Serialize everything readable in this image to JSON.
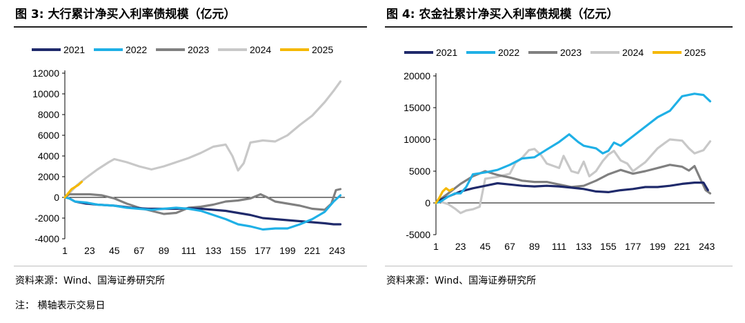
{
  "figures": [
    {
      "title": "图 3:  大行累计净买入利率债规模（亿元）",
      "source": "资料来源：Wind、国海证券研究所"
    },
    {
      "title": "图 4:  农金社累计净买入利率债规模（亿元）",
      "source": "资料来源：Wind、国海证券研究所"
    }
  ],
  "note": "注：  横轴表示交易日",
  "chart_data": [
    {
      "type": "line",
      "title": "图 3:  大行累计净买入利率债规模（亿元）",
      "xlabel": "",
      "ylabel": "",
      "x_ticks": [
        1,
        23,
        45,
        67,
        89,
        111,
        133,
        155,
        177,
        199,
        221,
        243
      ],
      "xlim": [
        1,
        250
      ],
      "ylim": [
        -4000,
        12000
      ],
      "y_ticks": [
        -4000,
        -2000,
        0,
        2000,
        4000,
        6000,
        8000,
        10000,
        12000
      ],
      "legend_position": "top",
      "series": [
        {
          "name": "2021",
          "color": "#1f2a6b",
          "points": [
            [
              1,
              0
            ],
            [
              5,
              -100
            ],
            [
              10,
              -400
            ],
            [
              20,
              -600
            ],
            [
              30,
              -700
            ],
            [
              45,
              -800
            ],
            [
              60,
              -1000
            ],
            [
              75,
              -1100
            ],
            [
              89,
              -1100
            ],
            [
              100,
              -1100
            ],
            [
              111,
              -1050
            ],
            [
              122,
              -1100
            ],
            [
              133,
              -1200
            ],
            [
              144,
              -1300
            ],
            [
              155,
              -1500
            ],
            [
              166,
              -1700
            ],
            [
              177,
              -2000
            ],
            [
              188,
              -2100
            ],
            [
              199,
              -2200
            ],
            [
              210,
              -2300
            ],
            [
              221,
              -2400
            ],
            [
              232,
              -2500
            ],
            [
              240,
              -2600
            ],
            [
              246,
              -2600
            ]
          ]
        },
        {
          "name": "2022",
          "color": "#1fb0e6",
          "points": [
            [
              1,
              0
            ],
            [
              5,
              -100
            ],
            [
              10,
              -400
            ],
            [
              20,
              -500
            ],
            [
              30,
              -700
            ],
            [
              45,
              -800
            ],
            [
              56,
              -1000
            ],
            [
              67,
              -1100
            ],
            [
              78,
              -1200
            ],
            [
              89,
              -1100
            ],
            [
              100,
              -1000
            ],
            [
              111,
              -1100
            ],
            [
              122,
              -1300
            ],
            [
              133,
              -1700
            ],
            [
              144,
              -2100
            ],
            [
              155,
              -2600
            ],
            [
              166,
              -2800
            ],
            [
              177,
              -3100
            ],
            [
              188,
              -3000
            ],
            [
              199,
              -3000
            ],
            [
              210,
              -2600
            ],
            [
              221,
              -2100
            ],
            [
              232,
              -1400
            ],
            [
              240,
              -400
            ],
            [
              246,
              200
            ]
          ]
        },
        {
          "name": "2023",
          "color": "#808080",
          "points": [
            [
              1,
              0
            ],
            [
              5,
              300
            ],
            [
              12,
              300
            ],
            [
              23,
              300
            ],
            [
              34,
              200
            ],
            [
              45,
              -100
            ],
            [
              56,
              -600
            ],
            [
              67,
              -1000
            ],
            [
              78,
              -1300
            ],
            [
              89,
              -1600
            ],
            [
              100,
              -1500
            ],
            [
              111,
              -1000
            ],
            [
              122,
              -900
            ],
            [
              133,
              -700
            ],
            [
              144,
              -400
            ],
            [
              155,
              -300
            ],
            [
              166,
              -100
            ],
            [
              175,
              300
            ],
            [
              181,
              0
            ],
            [
              188,
              -400
            ],
            [
              199,
              -600
            ],
            [
              210,
              -800
            ],
            [
              221,
              -1100
            ],
            [
              232,
              -1200
            ],
            [
              238,
              -600
            ],
            [
              242,
              700
            ],
            [
              246,
              800
            ]
          ]
        },
        {
          "name": "2024",
          "color": "#c8c8c8",
          "points": [
            [
              1,
              0
            ],
            [
              5,
              400
            ],
            [
              12,
              1200
            ],
            [
              20,
              1900
            ],
            [
              30,
              2700
            ],
            [
              40,
              3400
            ],
            [
              45,
              3700
            ],
            [
              56,
              3400
            ],
            [
              67,
              3000
            ],
            [
              78,
              2700
            ],
            [
              89,
              3000
            ],
            [
              100,
              3400
            ],
            [
              111,
              3800
            ],
            [
              122,
              4300
            ],
            [
              133,
              4900
            ],
            [
              144,
              5100
            ],
            [
              150,
              4000
            ],
            [
              155,
              2600
            ],
            [
              160,
              3300
            ],
            [
              166,
              5300
            ],
            [
              177,
              5500
            ],
            [
              188,
              5400
            ],
            [
              199,
              6000
            ],
            [
              210,
              7000
            ],
            [
              221,
              7900
            ],
            [
              232,
              9200
            ],
            [
              240,
              10300
            ],
            [
              246,
              11200
            ]
          ]
        },
        {
          "name": "2025",
          "color": "#f5b800",
          "points": [
            [
              1,
              0
            ],
            [
              4,
              400
            ],
            [
              7,
              800
            ],
            [
              10,
              1000
            ],
            [
              13,
              1200
            ],
            [
              16,
              1500
            ]
          ]
        }
      ]
    },
    {
      "type": "line",
      "title": "图 4:  农金社累计净买入利率债规模（亿元）",
      "xlabel": "",
      "ylabel": "",
      "x_ticks": [
        1,
        23,
        45,
        67,
        89,
        111,
        133,
        155,
        177,
        199,
        221,
        243
      ],
      "xlim": [
        1,
        250
      ],
      "ylim": [
        -5000,
        20000
      ],
      "y_ticks": [
        -5000,
        0,
        5000,
        10000,
        15000,
        20000
      ],
      "legend_position": "top",
      "series": [
        {
          "name": "2021",
          "color": "#1f2a6b",
          "points": [
            [
              1,
              0
            ],
            [
              5,
              500
            ],
            [
              12,
              1000
            ],
            [
              23,
              1800
            ],
            [
              34,
              2300
            ],
            [
              45,
              2700
            ],
            [
              56,
              3100
            ],
            [
              67,
              2900
            ],
            [
              78,
              2700
            ],
            [
              89,
              2600
            ],
            [
              100,
              2700
            ],
            [
              111,
              2600
            ],
            [
              122,
              2400
            ],
            [
              133,
              2200
            ],
            [
              144,
              1800
            ],
            [
              155,
              1700
            ],
            [
              166,
              2000
            ],
            [
              177,
              2200
            ],
            [
              188,
              2500
            ],
            [
              199,
              2500
            ],
            [
              210,
              2700
            ],
            [
              221,
              3000
            ],
            [
              232,
              3200
            ],
            [
              240,
              3200
            ],
            [
              244,
              2000
            ]
          ]
        },
        {
          "name": "2022",
          "color": "#1fb0e6",
          "points": [
            [
              1,
              0
            ],
            [
              5,
              200
            ],
            [
              12,
              1000
            ],
            [
              18,
              1500
            ],
            [
              23,
              1500
            ],
            [
              28,
              2500
            ],
            [
              34,
              4500
            ],
            [
              45,
              4800
            ],
            [
              56,
              5200
            ],
            [
              67,
              6000
            ],
            [
              78,
              7000
            ],
            [
              89,
              7200
            ],
            [
              100,
              8400
            ],
            [
              111,
              9600
            ],
            [
              120,
              10800
            ],
            [
              128,
              9600
            ],
            [
              133,
              9000
            ],
            [
              144,
              8600
            ],
            [
              150,
              7800
            ],
            [
              155,
              8200
            ],
            [
              160,
              9500
            ],
            [
              166,
              9000
            ],
            [
              177,
              10500
            ],
            [
              188,
              12000
            ],
            [
              199,
              13500
            ],
            [
              210,
              14500
            ],
            [
              221,
              16800
            ],
            [
              232,
              17200
            ],
            [
              240,
              17000
            ],
            [
              246,
              16000
            ]
          ]
        },
        {
          "name": "2023",
          "color": "#808080",
          "points": [
            [
              1,
              0
            ],
            [
              5,
              600
            ],
            [
              12,
              1500
            ],
            [
              23,
              3000
            ],
            [
              34,
              4200
            ],
            [
              45,
              5000
            ],
            [
              56,
              4400
            ],
            [
              67,
              4000
            ],
            [
              78,
              3500
            ],
            [
              89,
              3300
            ],
            [
              100,
              3300
            ],
            [
              111,
              2900
            ],
            [
              122,
              2500
            ],
            [
              133,
              2700
            ],
            [
              144,
              3500
            ],
            [
              155,
              4500
            ],
            [
              166,
              5200
            ],
            [
              177,
              4600
            ],
            [
              188,
              5000
            ],
            [
              199,
              5500
            ],
            [
              210,
              6000
            ],
            [
              221,
              5700
            ],
            [
              227,
              5100
            ],
            [
              232,
              5800
            ],
            [
              238,
              3500
            ],
            [
              242,
              2000
            ],
            [
              246,
              1500
            ]
          ]
        },
        {
          "name": "2024",
          "color": "#c8c8c8",
          "points": [
            [
              1,
              0
            ],
            [
              5,
              200
            ],
            [
              12,
              -200
            ],
            [
              18,
              -900
            ],
            [
              23,
              -1600
            ],
            [
              28,
              -1200
            ],
            [
              34,
              -1000
            ],
            [
              40,
              -600
            ],
            [
              45,
              3800
            ],
            [
              56,
              4100
            ],
            [
              67,
              4600
            ],
            [
              72,
              6300
            ],
            [
              78,
              7100
            ],
            [
              84,
              8300
            ],
            [
              89,
              8500
            ],
            [
              95,
              7500
            ],
            [
              100,
              6200
            ],
            [
              111,
              5500
            ],
            [
              115,
              7400
            ],
            [
              122,
              5000
            ],
            [
              128,
              4700
            ],
            [
              133,
              6500
            ],
            [
              138,
              4200
            ],
            [
              144,
              5000
            ],
            [
              150,
              6600
            ],
            [
              155,
              7600
            ],
            [
              160,
              8200
            ],
            [
              166,
              6700
            ],
            [
              172,
              6200
            ],
            [
              177,
              5000
            ],
            [
              188,
              6400
            ],
            [
              199,
              8600
            ],
            [
              206,
              9500
            ],
            [
              210,
              10000
            ],
            [
              221,
              9800
            ],
            [
              227,
              8600
            ],
            [
              232,
              7800
            ],
            [
              240,
              8300
            ],
            [
              246,
              9700
            ]
          ]
        },
        {
          "name": "2025",
          "color": "#f5b800",
          "points": [
            [
              1,
              0
            ],
            [
              4,
              800
            ],
            [
              7,
              1800
            ],
            [
              10,
              2300
            ],
            [
              13,
              1900
            ],
            [
              16,
              2200
            ]
          ]
        }
      ]
    }
  ]
}
